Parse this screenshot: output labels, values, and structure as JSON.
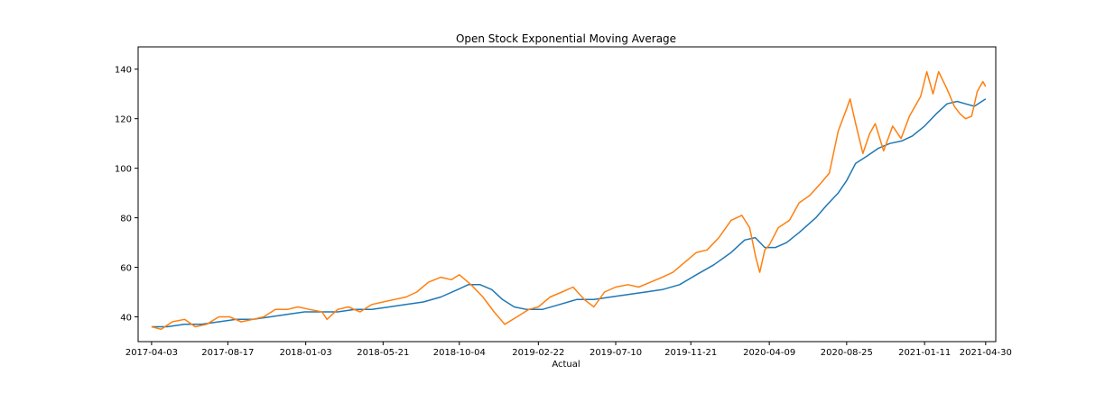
{
  "chart_data": {
    "type": "line",
    "title": "Open Stock Exponential Moving Average",
    "xlabel": "Actual",
    "ylabel": "",
    "x_ticks": [
      "2017-04-03",
      "2017-08-17",
      "2018-01-03",
      "2018-05-21",
      "2018-10-04",
      "2019-02-22",
      "2019-07-10",
      "2019-11-21",
      "2020-04-09",
      "2020-08-25",
      "2021-01-11",
      "2021-04-30"
    ],
    "xlim": [
      "2017-03-10",
      "2021-05-18"
    ],
    "y_ticks": [
      40,
      60,
      80,
      100,
      120,
      140
    ],
    "ylim": [
      30,
      149
    ],
    "grid": false,
    "colors": {
      "ema": "#1f77b4",
      "actual": "#ff7f0e"
    },
    "series": [
      {
        "key": "ema",
        "x": [
          "2017-04-03",
          "2017-05-01",
          "2017-06-01",
          "2017-07-01",
          "2017-08-01",
          "2017-09-01",
          "2017-10-01",
          "2017-11-01",
          "2017-12-01",
          "2018-01-01",
          "2018-02-01",
          "2018-03-01",
          "2018-04-01",
          "2018-05-01",
          "2018-06-01",
          "2018-07-01",
          "2018-08-01",
          "2018-09-01",
          "2018-10-01",
          "2018-10-20",
          "2018-11-10",
          "2018-12-01",
          "2018-12-20",
          "2019-01-10",
          "2019-02-01",
          "2019-03-01",
          "2019-04-01",
          "2019-05-01",
          "2019-06-01",
          "2019-07-01",
          "2019-08-01",
          "2019-09-01",
          "2019-10-01",
          "2019-11-01",
          "2019-12-01",
          "2020-01-01",
          "2020-02-01",
          "2020-02-25",
          "2020-03-15",
          "2020-04-01",
          "2020-04-20",
          "2020-05-10",
          "2020-06-01",
          "2020-07-01",
          "2020-07-20",
          "2020-08-10",
          "2020-08-25",
          "2020-09-10",
          "2020-10-01",
          "2020-10-20",
          "2020-11-10",
          "2020-12-01",
          "2020-12-20",
          "2021-01-11",
          "2021-02-01",
          "2021-02-20",
          "2021-03-10",
          "2021-03-25",
          "2021-04-10",
          "2021-04-30"
        ],
        "y": [
          36,
          36,
          37,
          37,
          38,
          39,
          39,
          40,
          41,
          42,
          42,
          42,
          43,
          43,
          44,
          45,
          46,
          48,
          51,
          53,
          53,
          51,
          47,
          44,
          43,
          43,
          45,
          47,
          47,
          48,
          49,
          50,
          51,
          53,
          57,
          61,
          66,
          71,
          72,
          68,
          68,
          70,
          74,
          80,
          85,
          90,
          95,
          102,
          105,
          108,
          110,
          111,
          113,
          117,
          122,
          126,
          127,
          126,
          125,
          128
        ]
      },
      {
        "key": "actual",
        "x": [
          "2017-04-03",
          "2017-04-20",
          "2017-05-10",
          "2017-06-01",
          "2017-06-20",
          "2017-07-10",
          "2017-08-01",
          "2017-08-20",
          "2017-09-10",
          "2017-10-01",
          "2017-10-20",
          "2017-11-10",
          "2017-12-01",
          "2017-12-20",
          "2018-01-10",
          "2018-02-01",
          "2018-02-10",
          "2018-03-01",
          "2018-03-20",
          "2018-04-10",
          "2018-05-01",
          "2018-05-21",
          "2018-06-10",
          "2018-07-01",
          "2018-07-20",
          "2018-08-10",
          "2018-09-01",
          "2018-09-20",
          "2018-10-04",
          "2018-10-25",
          "2018-11-15",
          "2018-12-05",
          "2018-12-24",
          "2019-01-15",
          "2019-02-05",
          "2019-02-22",
          "2019-03-15",
          "2019-04-05",
          "2019-04-25",
          "2019-05-15",
          "2019-06-01",
          "2019-06-20",
          "2019-07-10",
          "2019-08-01",
          "2019-08-20",
          "2019-09-10",
          "2019-10-01",
          "2019-10-20",
          "2019-11-10",
          "2019-12-01",
          "2019-12-20",
          "2020-01-10",
          "2020-02-01",
          "2020-02-20",
          "2020-03-05",
          "2020-03-16",
          "2020-03-23",
          "2020-04-01",
          "2020-04-09",
          "2020-04-25",
          "2020-05-15",
          "2020-06-01",
          "2020-06-20",
          "2020-07-10",
          "2020-07-25",
          "2020-08-10",
          "2020-08-25",
          "2020-08-31",
          "2020-09-10",
          "2020-09-23",
          "2020-10-05",
          "2020-10-15",
          "2020-10-30",
          "2020-11-15",
          "2020-11-30",
          "2020-12-15",
          "2021-01-04",
          "2021-01-15",
          "2021-01-26",
          "2021-02-05",
          "2021-02-20",
          "2021-03-05",
          "2021-03-15",
          "2021-03-25",
          "2021-04-05",
          "2021-04-15",
          "2021-04-25",
          "2021-04-30"
        ],
        "y": [
          36,
          35,
          38,
          39,
          36,
          37,
          40,
          40,
          38,
          39,
          40,
          43,
          43,
          44,
          43,
          42,
          39,
          43,
          44,
          42,
          45,
          46,
          47,
          48,
          50,
          54,
          56,
          55,
          57,
          53,
          48,
          42,
          37,
          40,
          43,
          44,
          48,
          50,
          52,
          47,
          44,
          50,
          52,
          53,
          52,
          54,
          56,
          58,
          62,
          66,
          67,
          72,
          79,
          81,
          76,
          64,
          58,
          67,
          69,
          76,
          79,
          86,
          89,
          94,
          98,
          115,
          124,
          128,
          118,
          106,
          114,
          118,
          107,
          117,
          112,
          121,
          129,
          139,
          130,
          139,
          132,
          125,
          122,
          120,
          121,
          131,
          135,
          133
        ]
      }
    ]
  }
}
